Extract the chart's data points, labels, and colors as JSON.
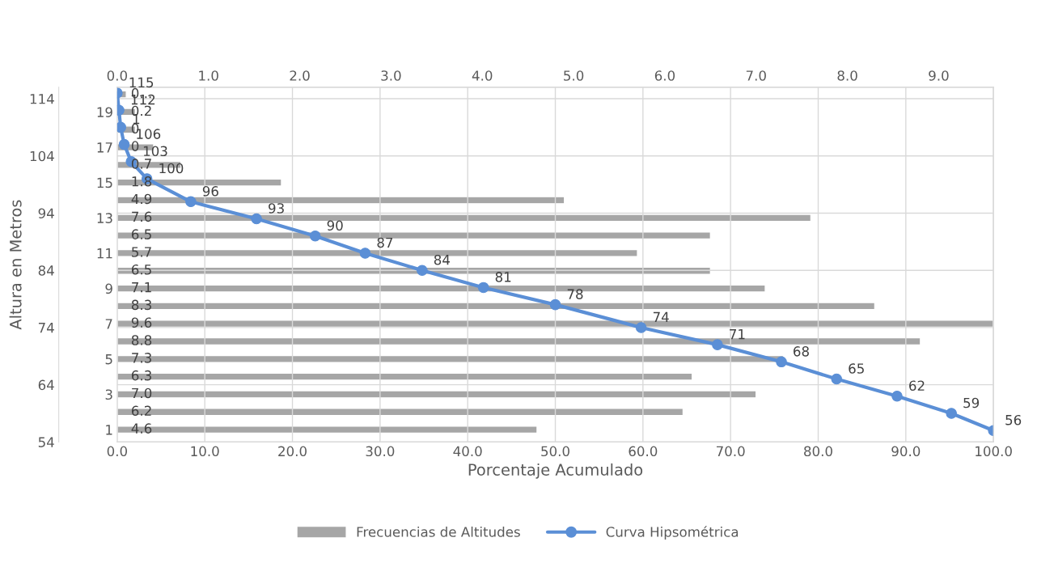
{
  "chart_data": [
    {
      "type": "bar",
      "orientation": "horizontal",
      "categories": [
        null,
        "19",
        null,
        "17",
        null,
        "15",
        null,
        "13",
        null,
        "11",
        null,
        "9",
        null,
        "7",
        null,
        "5",
        null,
        "3",
        null,
        "1"
      ],
      "xlim": [
        0,
        9.6
      ],
      "xticks": [
        {
          "value": 0,
          "label": "0.0"
        },
        {
          "value": 1,
          "label": "1.0"
        },
        {
          "value": 2,
          "label": "2.0"
        },
        {
          "value": 3,
          "label": "3.0"
        },
        {
          "value": 4,
          "label": "4.0"
        },
        {
          "value": 5,
          "label": "5.0"
        },
        {
          "value": 6,
          "label": "6.0"
        },
        {
          "value": 7,
          "label": "7.0"
        },
        {
          "value": 8,
          "label": "8.0"
        },
        {
          "value": 9,
          "label": "9.0"
        }
      ],
      "legend": "bottom",
      "series": [
        {
          "name": "Frecuencias de Altitudes",
          "color": "#a6a6a6",
          "values": [
            0.1,
            0.2,
            0.2,
            0.4,
            0.7,
            1.8,
            4.9,
            7.6,
            6.5,
            5.7,
            6.5,
            7.1,
            8.3,
            9.6,
            8.8,
            7.3,
            6.3,
            7.0,
            6.2,
            4.6
          ],
          "value_labels": [
            "0...",
            "0.2",
            "0",
            "0",
            "0.7",
            "1.8",
            "4.9",
            "7.6",
            "6.5",
            "5.7",
            "6.5",
            "7.1",
            "8.3",
            "9.6",
            "8.8",
            "7.3",
            "6.3",
            "7.0",
            "6.2",
            "4.6"
          ]
        }
      ]
    },
    {
      "type": "line",
      "xlabel": "Porcentaje Acumulado",
      "ylabel": "Altura en Metros",
      "xlim": [
        0,
        100
      ],
      "xticks": [
        {
          "value": 0,
          "label": "0.0"
        },
        {
          "value": 10,
          "label": "10.0"
        },
        {
          "value": 20,
          "label": "20.0"
        },
        {
          "value": 30,
          "label": "30.0"
        },
        {
          "value": 40,
          "label": "40.0"
        },
        {
          "value": 50,
          "label": "50.0"
        },
        {
          "value": 60,
          "label": "60.0"
        },
        {
          "value": 70,
          "label": "70.0"
        },
        {
          "value": 80,
          "label": "80.0"
        },
        {
          "value": 90,
          "label": "90.0"
        },
        {
          "value": 100,
          "label": "100.0"
        }
      ],
      "ylim": [
        54,
        116
      ],
      "yticks": [
        54,
        64,
        74,
        84,
        94,
        104,
        114
      ],
      "grid": true,
      "legend": "bottom",
      "marker": "circle",
      "x": [
        0,
        0.2,
        0.4,
        0.8,
        1.6,
        3.4,
        8.4,
        15.9,
        22.6,
        28.3,
        34.8,
        41.8,
        50.0,
        59.8,
        68.5,
        75.8,
        82.1,
        89.0,
        95.2,
        100
      ],
      "series": [
        {
          "name": "Curva Hipsométrica",
          "color": "#5b8fd6",
          "values": [
            115,
            112,
            109,
            106,
            103,
            100,
            96,
            93,
            90,
            87,
            84,
            81,
            78,
            74,
            71,
            68,
            65,
            62,
            59,
            56
          ],
          "value_labels": [
            "115",
            "112",
            null,
            "106",
            "103",
            "100",
            "96",
            "93",
            "90",
            "87",
            "84",
            "81",
            "78",
            "74",
            "71",
            "68",
            "65",
            "62",
            "59",
            "56"
          ]
        }
      ],
      "annotations": [
        {
          "text": "1",
          "x": 0.4,
          "y": 109
        }
      ]
    }
  ]
}
